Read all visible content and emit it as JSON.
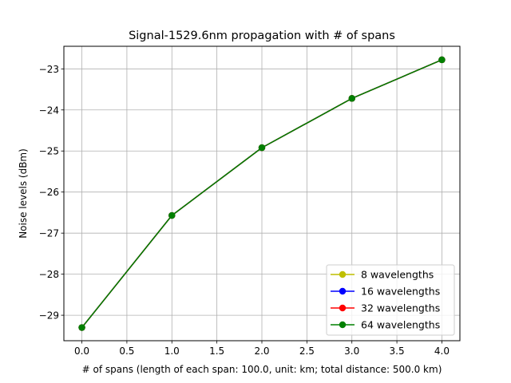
{
  "chart_data": {
    "type": "line",
    "title": "Signal-1529.6nm propagation with # of spans",
    "xlabel": "# of spans (length of each span: 100.0, unit: km; total distance: 500.0 km)",
    "ylabel": "Noise levels (dBm)",
    "xlim": [
      -0.2,
      4.2
    ],
    "ylim": [
      -29.62,
      -22.45
    ],
    "xticks": [
      0.0,
      0.5,
      1.0,
      1.5,
      2.0,
      2.5,
      3.0,
      3.5,
      4.0
    ],
    "xtick_labels": [
      "0.0",
      "0.5",
      "1.0",
      "1.5",
      "2.0",
      "2.5",
      "3.0",
      "3.5",
      "4.0"
    ],
    "yticks": [
      -29,
      -28,
      -27,
      -26,
      -25,
      -24,
      -23
    ],
    "ytick_labels": [
      "−29",
      "−28",
      "−27",
      "−26",
      "−25",
      "−24",
      "−23"
    ],
    "grid": true,
    "legend_position": "lower-right",
    "x": [
      0,
      1,
      2,
      3,
      4
    ],
    "series": [
      {
        "name": "8 wavelengths",
        "color": "#bfbf00",
        "values": [
          -29.3,
          -26.57,
          -24.92,
          -23.72,
          -22.78
        ]
      },
      {
        "name": "16 wavelengths",
        "color": "#0000ff",
        "values": [
          -29.3,
          -26.57,
          -24.92,
          -23.72,
          -22.78
        ]
      },
      {
        "name": "32 wavelengths",
        "color": "#ff0000",
        "values": [
          -29.3,
          -26.57,
          -24.92,
          -23.72,
          -22.78
        ]
      },
      {
        "name": "64 wavelengths",
        "color": "#008000",
        "values": [
          -29.3,
          -26.57,
          -24.92,
          -23.72,
          -22.78
        ]
      }
    ]
  }
}
